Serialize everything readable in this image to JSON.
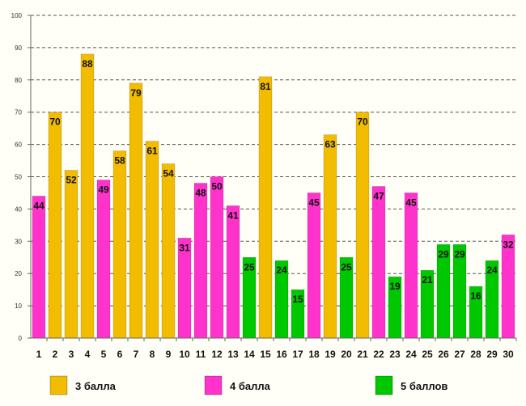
{
  "chart_data": {
    "type": "bar",
    "title": "",
    "xlabel": "",
    "ylabel": "",
    "ylim": [
      0,
      100
    ],
    "yticks": [
      0,
      10,
      20,
      30,
      40,
      50,
      60,
      70,
      80,
      90,
      100
    ],
    "grid": "horizontal dashed",
    "legend_position": "bottom",
    "categories": [
      "1",
      "2",
      "3",
      "4",
      "5",
      "6",
      "7",
      "8",
      "9",
      "10",
      "11",
      "12",
      "13",
      "14",
      "15",
      "16",
      "17",
      "18",
      "19",
      "20",
      "21",
      "22",
      "23",
      "24",
      "25",
      "26",
      "27",
      "28",
      "29",
      "30"
    ],
    "values": [
      44,
      70,
      52,
      88,
      49,
      58,
      79,
      61,
      54,
      31,
      48,
      50,
      41,
      25,
      81,
      24,
      15,
      45,
      63,
      25,
      70,
      47,
      19,
      45,
      21,
      29,
      29,
      16,
      24,
      32
    ],
    "groups": [
      1,
      0,
      0,
      0,
      1,
      0,
      0,
      0,
      0,
      1,
      1,
      1,
      1,
      2,
      0,
      2,
      2,
      1,
      0,
      2,
      0,
      1,
      2,
      1,
      2,
      2,
      2,
      2,
      2,
      1
    ],
    "series": [
      {
        "name": "3 балла",
        "color": "#f2bc00"
      },
      {
        "name": "4 балла",
        "color": "#ff33cc"
      },
      {
        "name": "5 баллов",
        "color": "#00c800"
      }
    ]
  }
}
